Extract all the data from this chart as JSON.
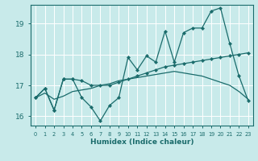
{
  "xlabel": "Humidex (Indice chaleur)",
  "bg_color": "#c8eaea",
  "line_color": "#1a6b6b",
  "grid_color": "#ffffff",
  "xlim": [
    0,
    23
  ],
  "ylim": [
    15.7,
    19.6
  ],
  "yticks": [
    16,
    17,
    18,
    19
  ],
  "xticks": [
    0,
    1,
    2,
    3,
    4,
    5,
    6,
    7,
    8,
    9,
    10,
    11,
    12,
    13,
    14,
    15,
    16,
    17,
    18,
    19,
    20,
    21,
    22,
    23
  ],
  "line1_x": [
    0,
    1,
    2,
    3,
    4,
    5,
    6,
    7,
    8,
    9,
    10,
    11,
    12,
    13,
    14,
    15,
    16,
    17,
    18,
    19,
    20,
    21,
    22,
    23
  ],
  "line1_y": [
    16.6,
    16.9,
    16.2,
    17.2,
    17.2,
    16.6,
    16.3,
    15.85,
    16.35,
    16.6,
    17.9,
    17.5,
    17.95,
    17.75,
    18.75,
    17.75,
    18.7,
    18.85,
    18.85,
    19.4,
    19.5,
    18.35,
    17.3,
    16.5
  ],
  "line2_x": [
    0,
    1,
    2,
    3,
    4,
    5,
    6,
    7,
    8,
    9,
    10,
    11,
    12,
    13,
    14,
    15,
    16,
    17,
    18,
    19,
    20,
    21,
    22,
    23
  ],
  "line2_y": [
    16.6,
    16.9,
    16.2,
    17.2,
    17.2,
    17.15,
    17.0,
    17.0,
    17.0,
    17.1,
    17.2,
    17.3,
    17.4,
    17.5,
    17.6,
    17.65,
    17.7,
    17.75,
    17.8,
    17.85,
    17.9,
    17.95,
    18.0,
    18.05
  ],
  "line3_x": [
    0,
    1,
    2,
    3,
    4,
    5,
    6,
    7,
    8,
    9,
    10,
    11,
    12,
    13,
    14,
    15,
    16,
    17,
    18,
    19,
    20,
    21,
    22,
    23
  ],
  "line3_y": [
    16.6,
    16.75,
    16.55,
    16.65,
    16.8,
    16.85,
    16.9,
    17.0,
    17.05,
    17.15,
    17.2,
    17.25,
    17.3,
    17.35,
    17.4,
    17.45,
    17.4,
    17.35,
    17.3,
    17.2,
    17.1,
    17.0,
    16.8,
    16.55
  ]
}
